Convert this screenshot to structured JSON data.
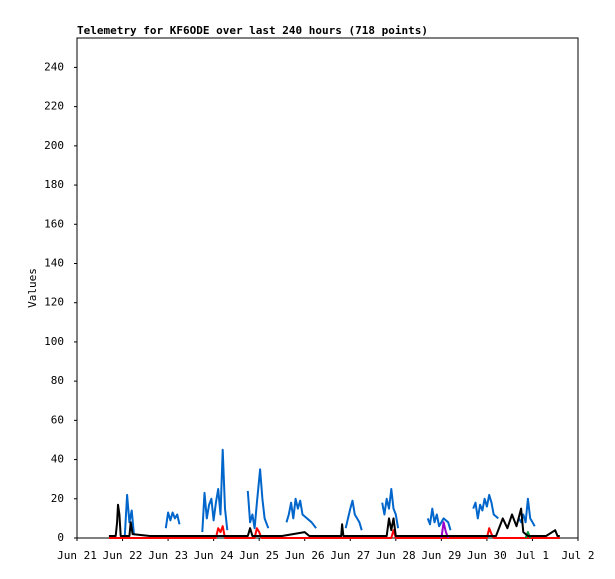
{
  "chart_data": {
    "type": "line",
    "title": "Telemetry for KF6ODE over last 240 hours (718 points)",
    "y_label": "Values",
    "xlim": [
      0,
      11
    ],
    "xticks": [
      {
        "value": 0,
        "label": "Jun 21"
      },
      {
        "value": 1,
        "label": "Jun 22"
      },
      {
        "value": 2,
        "label": "Jun 23"
      },
      {
        "value": 3,
        "label": "Jun 24"
      },
      {
        "value": 4,
        "label": "Jun 25"
      },
      {
        "value": 5,
        "label": "Jun 26"
      },
      {
        "value": 6,
        "label": "Jun 27"
      },
      {
        "value": 7,
        "label": "Jun 28"
      },
      {
        "value": 8,
        "label": "Jun 29"
      },
      {
        "value": 9,
        "label": "Jun 30"
      },
      {
        "value": 10,
        "label": "Jul 1"
      },
      {
        "value": 11,
        "label": "Jul 2"
      }
    ],
    "ylim": [
      0,
      255
    ],
    "yticks": [
      0,
      20,
      40,
      60,
      80,
      100,
      120,
      140,
      160,
      180,
      200,
      220,
      240
    ],
    "series": [
      {
        "color": "#0066cc",
        "x": [
          1.05,
          1.1,
          1.15,
          1.2,
          1.25,
          1.5,
          1.95,
          2.0,
          2.05,
          2.1,
          2.15,
          2.2,
          2.25,
          2.5,
          2.75,
          2.8,
          2.85,
          2.9,
          2.95,
          3.0,
          3.05,
          3.1,
          3.15,
          3.2,
          3.25,
          3.3,
          3.5,
          3.75,
          3.8,
          3.85,
          3.9,
          3.95,
          4.02,
          4.07,
          4.12,
          4.2,
          4.4,
          4.6,
          4.65,
          4.7,
          4.75,
          4.8,
          4.85,
          4.9,
          4.95,
          5.05,
          5.15,
          5.25,
          5.5,
          5.9,
          5.95,
          6.0,
          6.05,
          6.1,
          6.2,
          6.25,
          6.5,
          6.7,
          6.75,
          6.8,
          6.85,
          6.9,
          6.95,
          7.0,
          7.05,
          7.3,
          7.7,
          7.75,
          7.8,
          7.85,
          7.9,
          7.95,
          8.05,
          8.15,
          8.2,
          8.4,
          8.7,
          8.75,
          8.8,
          8.85,
          8.9,
          8.95,
          9.0,
          9.05,
          9.1,
          9.15,
          9.25,
          9.5,
          9.7,
          9.75,
          9.8,
          9.85,
          9.9,
          9.95,
          10.0,
          10.05
        ],
        "values": [
          1,
          22,
          8,
          14,
          2,
          null,
          5,
          13,
          9,
          13,
          10,
          12,
          7,
          null,
          3,
          23,
          10,
          17,
          20,
          9,
          18,
          25,
          12,
          45,
          15,
          4,
          null,
          24,
          8,
          12,
          5,
          18,
          35,
          20,
          10,
          5,
          null,
          8,
          12,
          18,
          10,
          20,
          15,
          19,
          12,
          10,
          8,
          5,
          null,
          5,
          10,
          15,
          19,
          12,
          8,
          4,
          null,
          18,
          12,
          20,
          15,
          25,
          15,
          12,
          5,
          null,
          10,
          7,
          15,
          8,
          12,
          6,
          10,
          8,
          4,
          null,
          15,
          18,
          10,
          17,
          14,
          20,
          16,
          22,
          18,
          12,
          10,
          null,
          10,
          8,
          12,
          8,
          20,
          10,
          8,
          6
        ]
      },
      {
        "color": "#ff0000",
        "x": [
          0.7,
          3.05,
          3.1,
          3.15,
          3.2,
          3.25,
          3.9,
          3.95,
          4.0,
          4.05,
          6.9,
          6.95,
          7.0,
          9.0,
          9.05,
          9.1,
          9.15,
          10.6
        ],
        "values": [
          0,
          0,
          5,
          3,
          6,
          0,
          0,
          5,
          3,
          0,
          0,
          4,
          0,
          0,
          5,
          2,
          0,
          0
        ]
      },
      {
        "color": "#9900cc",
        "x": [
          8.0,
          8.05,
          8.1,
          8.15
        ],
        "values": [
          0,
          8,
          3,
          0
        ]
      },
      {
        "color": "#009933",
        "x": [
          9.85,
          9.9,
          9.95
        ],
        "values": [
          0,
          3,
          0
        ]
      },
      {
        "color": "#000000",
        "x": [
          0.7,
          0.85,
          0.88,
          0.9,
          0.93,
          0.96,
          1.15,
          1.18,
          1.22,
          1.6,
          2.3,
          3.0,
          3.75,
          3.8,
          3.85,
          4.5,
          5.0,
          5.1,
          5.8,
          5.82,
          5.85,
          6.5,
          6.8,
          6.85,
          6.9,
          6.95,
          7.0,
          7.5,
          8.2,
          8.6,
          9.2,
          9.35,
          9.45,
          9.55,
          9.65,
          9.75,
          9.8,
          9.9,
          10.3,
          10.5,
          10.55,
          10.6
        ],
        "values": [
          1,
          1,
          8,
          17,
          12,
          1,
          1,
          8,
          2,
          1,
          1,
          1,
          1,
          5,
          1,
          1,
          3,
          1,
          1,
          7,
          1,
          1,
          1,
          10,
          4,
          10,
          1,
          1,
          1,
          1,
          1,
          10,
          5,
          12,
          6,
          15,
          3,
          1,
          1,
          4,
          1,
          1
        ]
      }
    ]
  }
}
